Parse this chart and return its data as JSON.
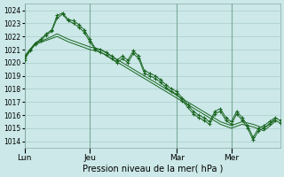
{
  "background_color": "#cce8e8",
  "grid_color": "#aacccc",
  "line_color": "#1a6620",
  "marker_color": "#1a6620",
  "xlabel": "Pression niveau de la mer( hPa )",
  "ylim": [
    1013.5,
    1024.5
  ],
  "yticks": [
    1014,
    1015,
    1016,
    1017,
    1018,
    1019,
    1020,
    1021,
    1022,
    1023,
    1024
  ],
  "day_labels": [
    "Lun",
    "Jeu",
    "Mar",
    "Mer"
  ],
  "day_positions": [
    0,
    12,
    28,
    38
  ],
  "total_points": 48,
  "series": [
    {
      "x": [
        0,
        2,
        4,
        6,
        8,
        10,
        12,
        14,
        16,
        18,
        20,
        22,
        24,
        26,
        28,
        30,
        32,
        34,
        36,
        38,
        40,
        42,
        44,
        46
      ],
      "y": [
        1020.5,
        1021.5,
        1021.8,
        1022.2,
        1021.8,
        1021.5,
        1021.2,
        1021.0,
        1020.5,
        1020.0,
        1019.5,
        1019.0,
        1018.5,
        1018.0,
        1017.5,
        1017.0,
        1016.5,
        1016.0,
        1015.5,
        1015.2,
        1015.5,
        1015.3,
        1015.0,
        1015.7
      ],
      "has_markers": false
    },
    {
      "x": [
        0,
        2,
        4,
        6,
        8,
        10,
        12,
        14,
        16,
        18,
        20,
        22,
        24,
        26,
        28,
        30,
        32,
        34,
        36,
        38,
        40,
        42,
        44,
        46
      ],
      "y": [
        1020.4,
        1021.4,
        1021.7,
        1022.0,
        1021.6,
        1021.3,
        1021.0,
        1020.8,
        1020.3,
        1019.8,
        1019.3,
        1018.8,
        1018.3,
        1017.8,
        1017.3,
        1016.8,
        1016.3,
        1015.8,
        1015.3,
        1015.0,
        1015.3,
        1015.1,
        1014.8,
        1015.5
      ],
      "has_markers": false
    },
    {
      "x": [
        0,
        1,
        2,
        3,
        4,
        5,
        6,
        7,
        8,
        9,
        10,
        11,
        12,
        13,
        14,
        15,
        16,
        17,
        18,
        19,
        20,
        21,
        22,
        23,
        24,
        25,
        26,
        27,
        28,
        29,
        30,
        31,
        32,
        33,
        34,
        35,
        36,
        37,
        38,
        39,
        40,
        41,
        42,
        43,
        44,
        45,
        46,
        47
      ],
      "y": [
        1020.3,
        1021.0,
        1021.5,
        1021.8,
        1022.2,
        1022.5,
        1023.6,
        1023.8,
        1023.3,
        1023.2,
        1022.9,
        1022.5,
        1021.8,
        1021.1,
        1021.0,
        1020.8,
        1020.5,
        1020.2,
        1020.5,
        1020.2,
        1020.9,
        1020.5,
        1019.4,
        1019.2,
        1019.0,
        1018.7,
        1018.3,
        1018.0,
        1017.8,
        1017.3,
        1016.8,
        1016.3,
        1016.0,
        1015.8,
        1015.5,
        1016.3,
        1016.5,
        1015.8,
        1015.5,
        1016.3,
        1015.8,
        1015.2,
        1014.3,
        1015.0,
        1015.2,
        1015.5,
        1015.8,
        1015.6
      ],
      "has_markers": true
    },
    {
      "x": [
        0,
        1,
        2,
        3,
        4,
        5,
        6,
        7,
        8,
        9,
        10,
        11,
        12,
        13,
        14,
        15,
        16,
        17,
        18,
        19,
        20,
        21,
        22,
        23,
        24,
        25,
        26,
        27,
        28,
        29,
        30,
        31,
        32,
        33,
        34,
        35,
        36,
        37,
        38,
        39,
        40,
        41,
        42,
        43,
        44,
        45,
        46,
        47
      ],
      "y": [
        1020.2,
        1020.9,
        1021.4,
        1021.7,
        1022.1,
        1022.4,
        1023.4,
        1023.7,
        1023.2,
        1023.0,
        1022.7,
        1022.3,
        1021.6,
        1021.0,
        1020.8,
        1020.6,
        1020.3,
        1020.0,
        1020.3,
        1020.0,
        1020.7,
        1020.3,
        1019.2,
        1019.0,
        1018.8,
        1018.5,
        1018.1,
        1017.8,
        1017.6,
        1017.1,
        1016.6,
        1016.1,
        1015.8,
        1015.6,
        1015.3,
        1016.1,
        1016.3,
        1015.6,
        1015.3,
        1016.1,
        1015.6,
        1015.0,
        1014.1,
        1014.8,
        1015.0,
        1015.3,
        1015.6,
        1015.4
      ],
      "has_markers": true
    }
  ]
}
